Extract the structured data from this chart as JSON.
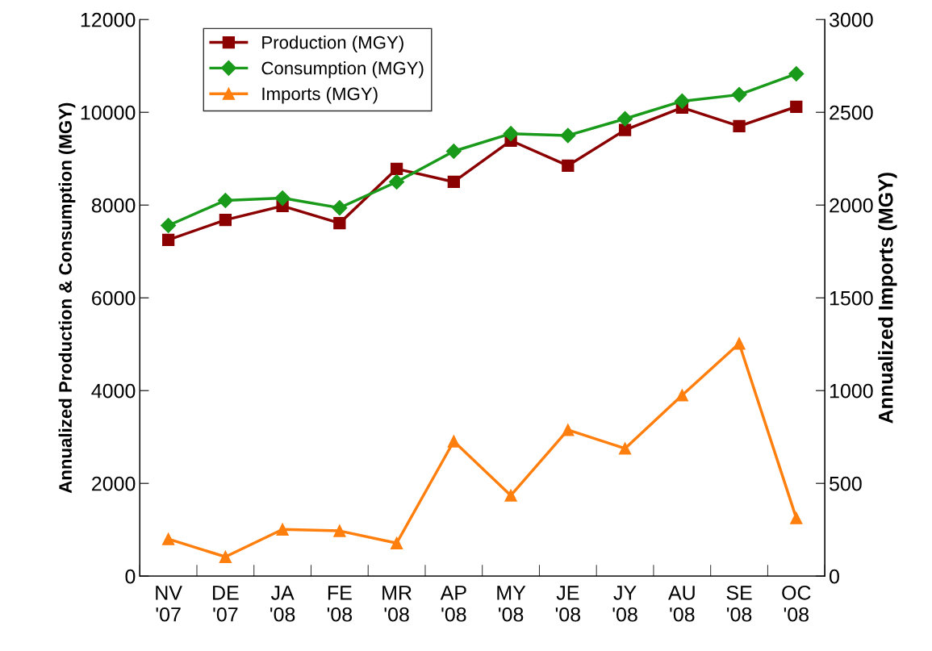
{
  "chart_data": {
    "type": "line",
    "ylabel": "Annualized Production & Consumption (MGY)",
    "y2label": "Annualized Imports (MGY)",
    "categories": [
      "NV\n'07",
      "DE\n'07",
      "JA\n'08",
      "FE\n'08",
      "MR\n'08",
      "AP\n'08",
      "MY\n'08",
      "JE\n'08",
      "JY\n'08",
      "AU\n'08",
      "SE\n'08",
      "OC\n'08"
    ],
    "series": [
      {
        "name": "Production (MGY)",
        "color": "#8b0000",
        "marker": "square",
        "values": [
          7250,
          7680,
          7980,
          7610,
          8780,
          8500,
          9390,
          8850,
          9620,
          10100,
          9700,
          10120
        ]
      },
      {
        "name": "Consumption (MGY)",
        "color": "#1a9a1a",
        "marker": "diamond",
        "values": [
          7560,
          8100,
          8150,
          7940,
          8500,
          9160,
          9540,
          9500,
          9860,
          10240,
          10380,
          10830
        ]
      },
      {
        "name": "Imports (MGY)",
        "color": "#ff7f0e",
        "marker": "triangle",
        "axis": "y2",
        "values": [
          200,
          104,
          252,
          244,
          178,
          727,
          435,
          788,
          688,
          975,
          1254,
          313
        ]
      }
    ],
    "ylim": [
      0,
      12000
    ],
    "yticks": [
      0,
      2000,
      4000,
      6000,
      8000,
      10000,
      12000
    ],
    "y2lim": [
      0,
      3000
    ],
    "y2ticks": [
      0,
      500,
      1000,
      1500,
      2000,
      2500,
      3000
    ],
    "grid": false,
    "legend": "top left",
    "line_style": "solid"
  }
}
